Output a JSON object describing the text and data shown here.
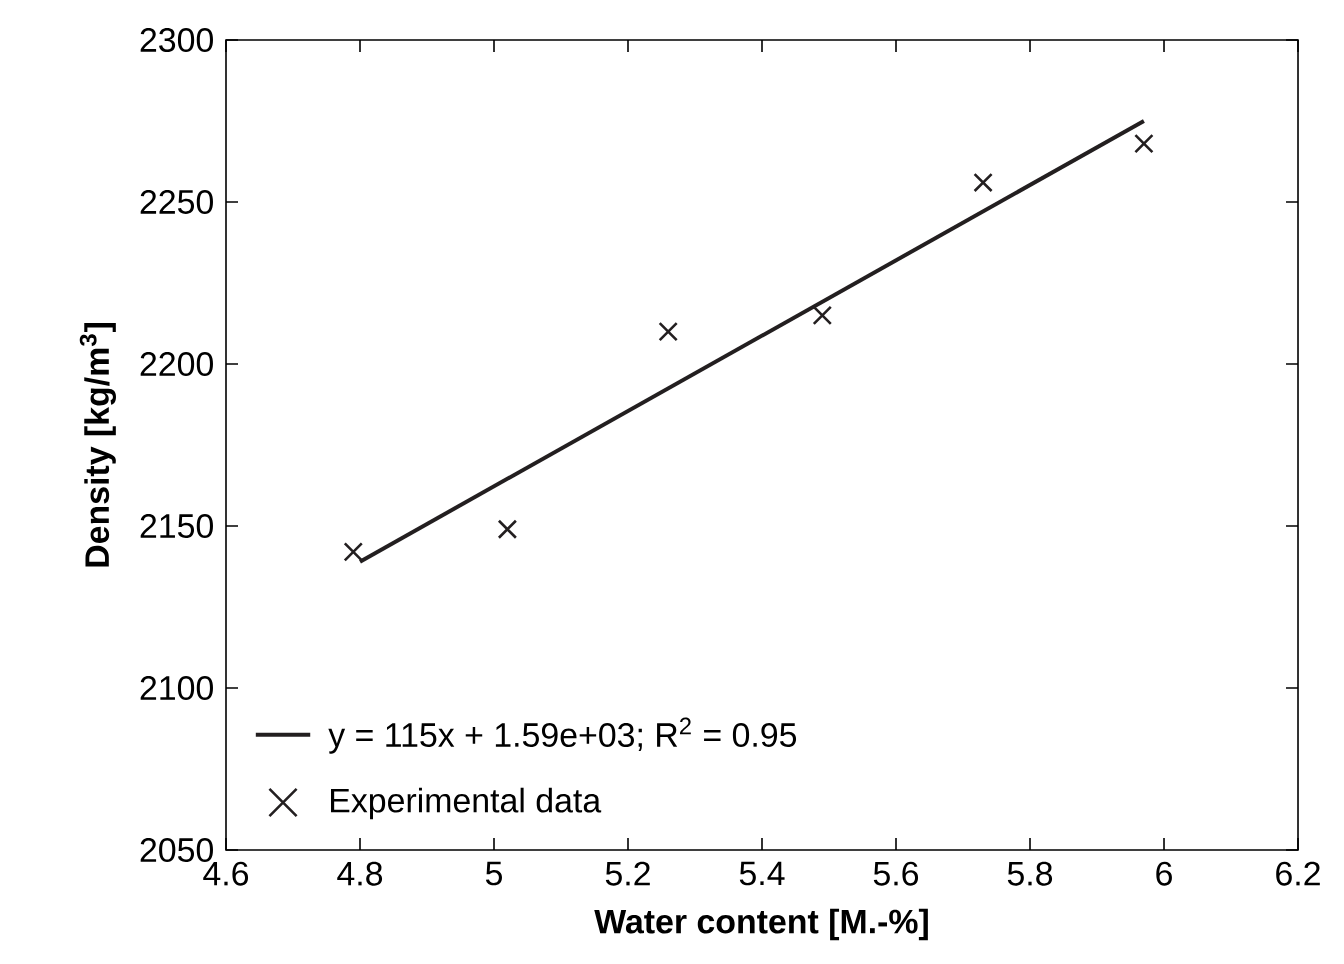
{
  "chart_data": {
    "type": "scatter",
    "xlabel": "Water content  [M.-%]",
    "ylabel": "Density [kg/m$^{3}$]",
    "xlim": [
      4.6,
      6.2
    ],
    "ylim": [
      2050,
      2300
    ],
    "xticks": [
      4.6,
      4.8,
      5,
      5.2,
      5.4,
      5.6,
      5.8,
      6,
      6.2
    ],
    "yticks": [
      2050,
      2100,
      2150,
      2200,
      2250,
      2300
    ],
    "grid": false,
    "legend": "bottom left",
    "series": [
      {
        "name": "y = 115x + 1.59e+03; R$^{2}$ = 0.95",
        "type": "line",
        "color": "#231f20",
        "marker": "none",
        "line_style": "solid",
        "x": [
          4.8,
          5.97
        ],
        "values": [
          2139,
          2275
        ]
      },
      {
        "name": "Experimental data",
        "color": "#231f20",
        "marker": "cross",
        "x": [
          4.79,
          5.02,
          5.26,
          5.49,
          5.73,
          5.97
        ],
        "values": [
          2142,
          2149,
          2210,
          2215,
          2256,
          2268
        ]
      }
    ]
  }
}
